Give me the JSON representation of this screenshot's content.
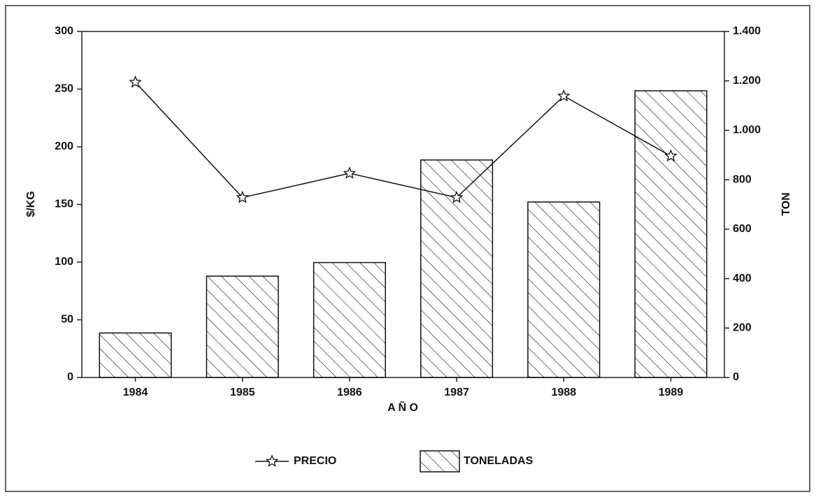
{
  "chart_data": {
    "type": "bar",
    "categories": [
      "1984",
      "1985",
      "1986",
      "1987",
      "1988",
      "1989"
    ],
    "x_label": "A Ñ O",
    "y_label": "$/KG",
    "y2_label": "TON",
    "ylim": [
      0,
      300
    ],
    "yticks": [
      0,
      50,
      100,
      150,
      200,
      250,
      300
    ],
    "y2lim": [
      0,
      1400
    ],
    "y2ticks": [
      0,
      200,
      400,
      600,
      800,
      {
        "value": 1000,
        "label": "1.000"
      },
      {
        "value": 1200,
        "label": "1.200"
      },
      {
        "value": 1400,
        "label": "1.400"
      }
    ],
    "legend": "bottom",
    "series": [
      {
        "name": "PRECIO",
        "type": "line",
        "color": "#111111",
        "axis": "y",
        "values": [
          256,
          156,
          177,
          156,
          244,
          192
        ]
      },
      {
        "name": "TONELADAS",
        "type": "bar",
        "color": "#111111",
        "axis": "y2",
        "values": [
          180,
          410,
          465,
          880,
          710,
          1160
        ]
      }
    ]
  }
}
